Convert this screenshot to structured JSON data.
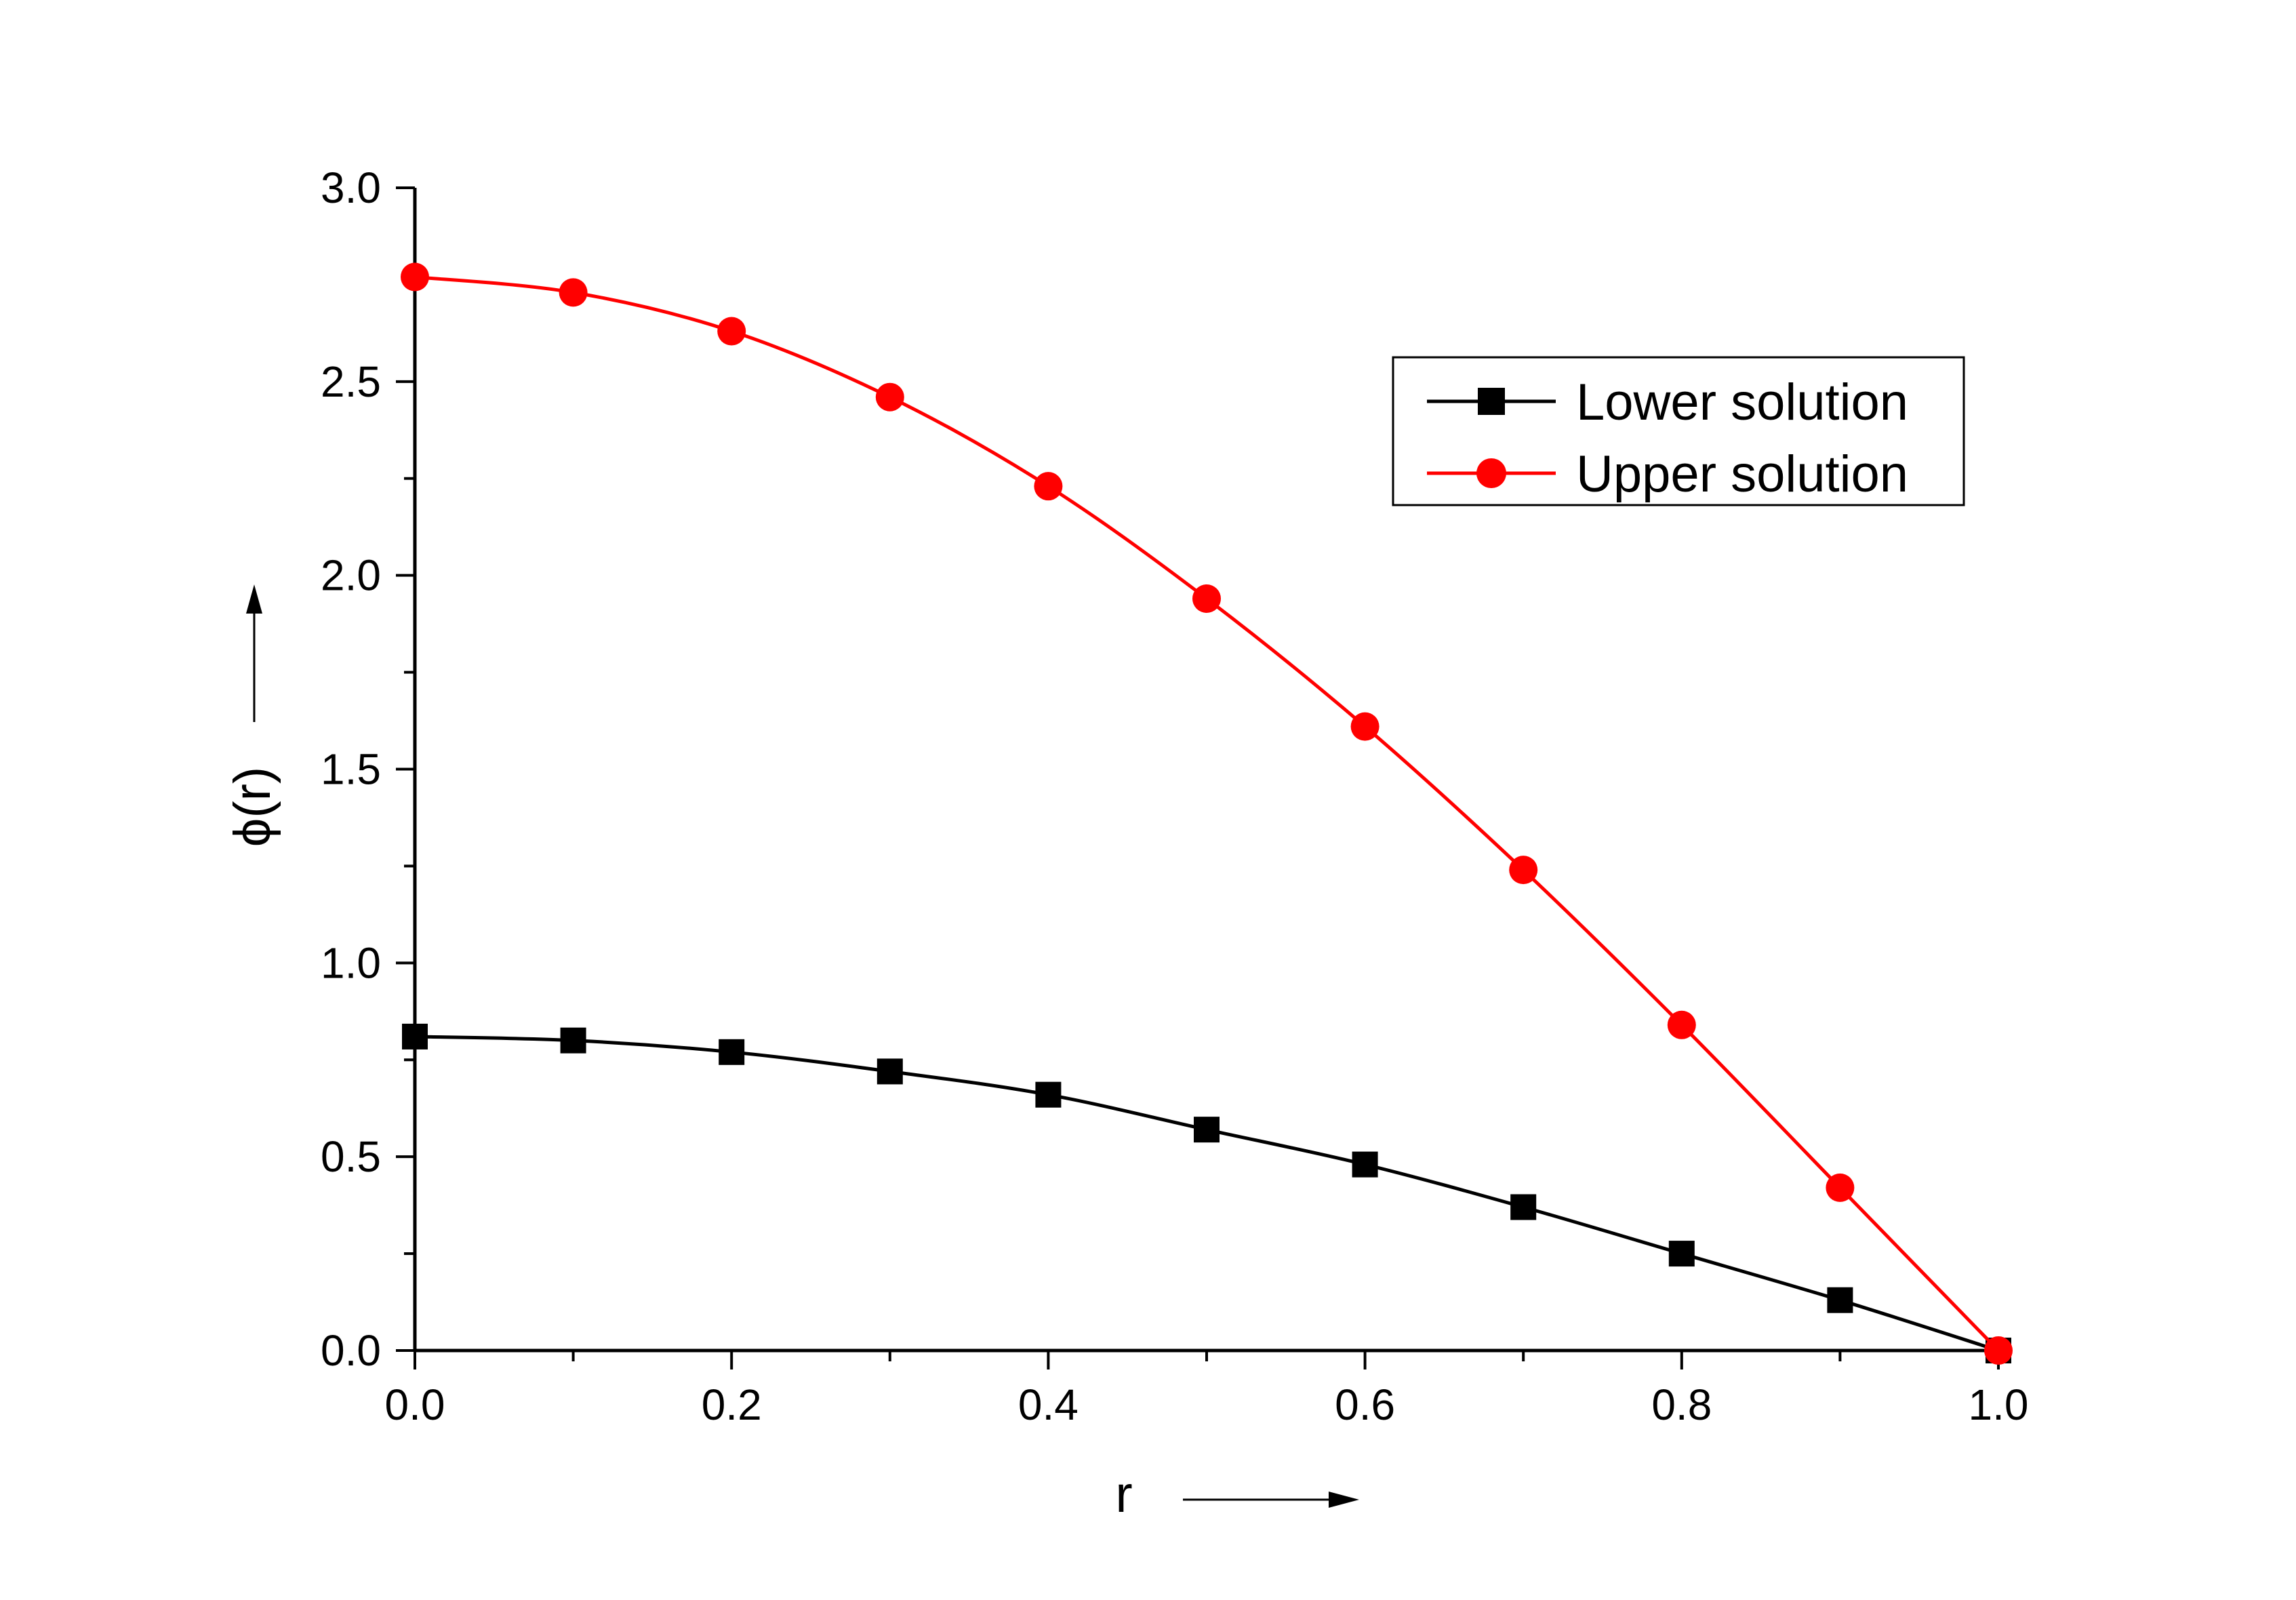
{
  "chart_data": {
    "type": "line",
    "xlabel": "r",
    "ylabel": "ϕ(r)",
    "xlim": [
      0.0,
      1.0
    ],
    "ylim": [
      0.0,
      3.0
    ],
    "xticks": [
      "0.0",
      "0.2",
      "0.4",
      "0.6",
      "0.8",
      "1.0"
    ],
    "yticks": [
      "0.0",
      "0.5",
      "1.0",
      "1.5",
      "2.0",
      "2.5",
      "3.0"
    ],
    "grid": false,
    "legend_position": "top-right",
    "x": [
      0.0,
      0.1,
      0.2,
      0.3,
      0.4,
      0.5,
      0.6,
      0.7,
      0.8,
      0.9,
      1.0
    ],
    "series": [
      {
        "name": "Lower solution",
        "marker": "square",
        "color": "#000000",
        "values": [
          0.81,
          0.8,
          0.77,
          0.72,
          0.66,
          0.57,
          0.48,
          0.37,
          0.25,
          0.13,
          0.0
        ]
      },
      {
        "name": "Upper solution",
        "marker": "circle",
        "color": "#ff0000",
        "values": [
          2.77,
          2.73,
          2.63,
          2.46,
          2.23,
          1.94,
          1.61,
          1.24,
          0.84,
          0.42,
          0.0
        ]
      }
    ]
  }
}
